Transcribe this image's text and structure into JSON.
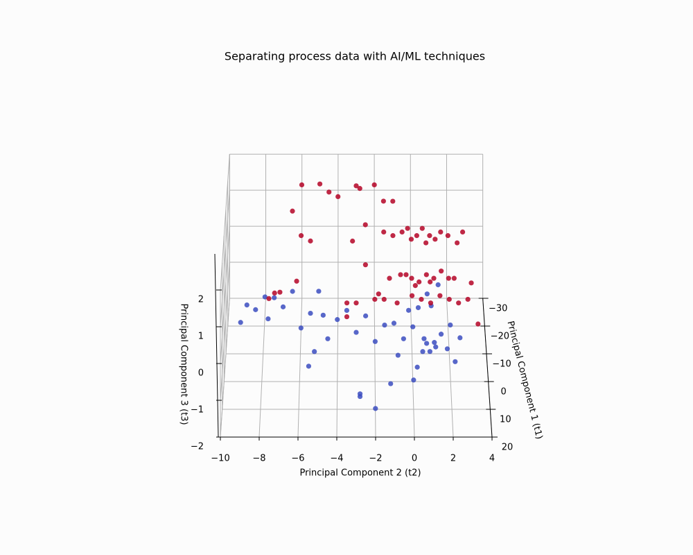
{
  "chart_data": {
    "type": "scatter3d",
    "title": "Separating process data with AI/ML techniques",
    "x_label": "Principal Component 2 (t2)",
    "y_label": "Principal Component 1 (t1)",
    "z_label": "Principal Component 3 (t3)",
    "xlim": [
      -10,
      4
    ],
    "ylim": [
      -30,
      20
    ],
    "zlim": [
      -2,
      2
    ],
    "xticks": [
      {
        "value": -10,
        "label": "−10"
      },
      {
        "value": -8,
        "label": "−8"
      },
      {
        "value": -6,
        "label": "−6"
      },
      {
        "value": -4,
        "label": "−4"
      },
      {
        "value": -2,
        "label": "−2"
      },
      0,
      2,
      4
    ],
    "yticks": [
      {
        "value": -30,
        "label": "−30"
      },
      {
        "value": -20,
        "label": "−20"
      },
      {
        "value": -10,
        "label": "−10"
      },
      0,
      10,
      20
    ],
    "zticks": [
      {
        "value": -2,
        "label": "−2"
      },
      {
        "value": -1,
        "label": "−1"
      },
      0,
      1,
      2
    ],
    "grid": true,
    "series": [
      {
        "color": "#3b4cc0",
        "x": [
          0,
          0.5,
          1,
          -0.5,
          1.5,
          0.2,
          0.8,
          1.2,
          -1,
          2,
          0.3,
          0.7,
          1.8,
          -0.2,
          0.9,
          1.4,
          0,
          0.6,
          1.1,
          -0.8,
          2.5,
          2.2,
          -1.5,
          -2,
          -2.5,
          -3,
          -3.5,
          -4,
          -4.5,
          -5,
          -5.2,
          -1.2,
          -2.8,
          -2,
          -9,
          -8.5,
          -8,
          -7.5,
          -7,
          -6.5,
          -9.3,
          -7.8,
          -5.5,
          -6,
          -4.8,
          -5.5,
          -2.8
        ],
        "y": [
          0,
          5,
          -5,
          3,
          0,
          8,
          -8,
          2,
          0,
          -2,
          -3,
          6,
          4,
          -6,
          1,
          -10,
          10,
          -1,
          7,
          5,
          0,
          6,
          2,
          4,
          0,
          2,
          -2,
          0,
          3,
          -5,
          5,
          10,
          12,
          15,
          -25,
          -22,
          -24,
          -25,
          -23,
          -26,
          -20,
          -20,
          -22,
          -18,
          -20,
          5,
          15
        ],
        "z": [
          -0.5,
          -0.8,
          -0.3,
          -0.6,
          -0.7,
          -1,
          -0.2,
          -0.9,
          -0.4,
          -0.6,
          -0.2,
          -0.5,
          -0.8,
          -0.5,
          -1.1,
          -0.1,
          -1.2,
          -0.9,
          -0.4,
          -0.9,
          -0.8,
          -1,
          -0.3,
          -0.6,
          -0.2,
          -0.5,
          -0.2,
          -0.3,
          -0.6,
          0.1,
          -0.8,
          -1.3,
          -1.5,
          -1.6,
          -1.8,
          -1.7,
          -1.5,
          -1.6,
          -1.7,
          -1.5,
          -1.9,
          -1.8,
          -1.8,
          -1.9,
          -1.7,
          -1.2,
          -1.2
        ]
      },
      {
        "color": "#b40426",
        "x": [
          -1,
          -0.5,
          0,
          0.3,
          0.6,
          1,
          1.3,
          1.6,
          2,
          -1.5,
          2.5,
          0.8,
          -0.2,
          -1.2,
          -0.6,
          0,
          0.4,
          0.8,
          1.2,
          1.6,
          2,
          0.2,
          1,
          -0.3,
          2.3,
          -1.5,
          -0.8,
          0,
          0.5,
          1,
          1.5,
          2,
          2.5,
          3,
          -2,
          -3,
          -3.5,
          -6,
          -5,
          -4.5,
          -6.5,
          -6,
          -5.5,
          -6.2,
          -4,
          -3,
          -2.8,
          -2,
          -1.5,
          -2.5,
          -3.2,
          -2.5,
          -1.8,
          -3.5,
          2.8,
          3.5,
          3.2,
          -1,
          -7.5,
          -7.2,
          -7.8
        ],
        "y": [
          -20,
          -20,
          -20,
          -20,
          -20,
          -20,
          -20,
          -20,
          -20,
          -20,
          -20,
          -20,
          -20,
          -15,
          -15,
          -15,
          -15,
          -15,
          -15,
          -15,
          -15,
          -15,
          -15,
          -15,
          -15,
          -10,
          -10,
          -10,
          -10,
          -10,
          -10,
          -10,
          -10,
          -10,
          -10,
          -10,
          -10,
          -28,
          -27,
          -28,
          -25,
          -20,
          -22,
          -10,
          -25,
          -25,
          -28,
          -28,
          -26,
          -20,
          -18,
          -12,
          -8,
          -5,
          -20,
          -5,
          -12,
          -22,
          -28,
          -27,
          -26
        ],
        "z": [
          0.5,
          0.6,
          0.4,
          0.5,
          0.7,
          0.5,
          0.4,
          0.6,
          0.5,
          0.6,
          0.3,
          0.3,
          0.7,
          -0.3,
          -0.2,
          -0.3,
          -0.4,
          -0.2,
          -0.3,
          -0.1,
          -0.3,
          -0.5,
          -0.4,
          -0.2,
          -0.3,
          -0.5,
          -0.6,
          -0.4,
          -0.5,
          -0.6,
          -0.4,
          -0.5,
          -0.6,
          -0.5,
          -0.5,
          -0.6,
          -0.6,
          1.3,
          1.4,
          1.1,
          0.8,
          0.5,
          0.2,
          0,
          1.2,
          1.5,
          1.2,
          1.3,
          1,
          0.8,
          0.5,
          0.3,
          -0.2,
          -0.6,
          0.6,
          -0.8,
          -0.2,
          1.3,
          -1.7,
          -1.6,
          -1.7
        ]
      }
    ]
  }
}
